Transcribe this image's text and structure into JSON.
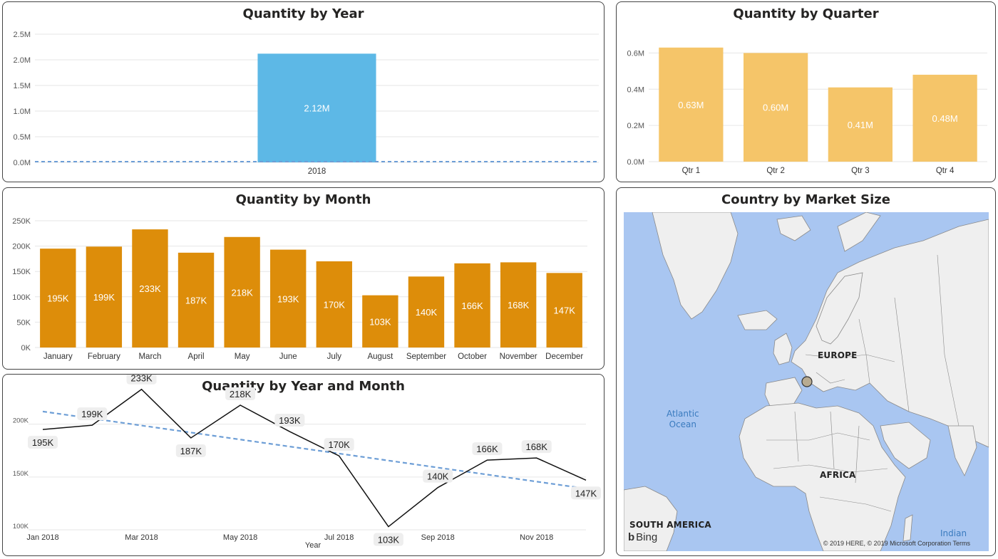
{
  "panels": {
    "year": {
      "title": "Quantity by Year"
    },
    "quarter": {
      "title": "Quantity by Quarter"
    },
    "month": {
      "title": "Quantity by Month"
    },
    "yearmonth": {
      "title": "Quantity by Year and Month"
    },
    "map": {
      "title": "Country by Market Size"
    }
  },
  "colors": {
    "year_bar": "#5db8e6",
    "quarter_bar": "#f5c569",
    "month_bar": "#dd8d0a",
    "line": "#111111",
    "trend": "#6d9ed6",
    "grid": "#e6e6e6",
    "ocean": "#a9c6f1",
    "land": "#efefef",
    "border": "#8a8a8a",
    "bubble": "#b8ab91"
  },
  "chart_data": [
    {
      "id": "year",
      "type": "bar",
      "title": "Quantity by Year",
      "categories": [
        "2018"
      ],
      "values": [
        2120000
      ],
      "data_labels": [
        "2.12M"
      ],
      "y_ticks": [
        "0.0M",
        "0.5M",
        "1.0M",
        "1.5M",
        "2.0M",
        "2.5M"
      ],
      "ylim": [
        0,
        2500000
      ],
      "trend_line": true,
      "grid": true
    },
    {
      "id": "quarter",
      "type": "bar",
      "title": "Quantity by Quarter",
      "categories": [
        "Qtr 1",
        "Qtr 2",
        "Qtr 3",
        "Qtr 4"
      ],
      "values": [
        630000,
        600000,
        410000,
        480000
      ],
      "data_labels": [
        "0.63M",
        "0.60M",
        "0.41M",
        "0.48M"
      ],
      "y_ticks": [
        "0.0M",
        "0.2M",
        "0.4M",
        "0.6M"
      ],
      "ylim": [
        0,
        700000
      ],
      "grid": true
    },
    {
      "id": "month",
      "type": "bar",
      "title": "Quantity by Month",
      "categories": [
        "January",
        "February",
        "March",
        "April",
        "May",
        "June",
        "July",
        "August",
        "September",
        "October",
        "November",
        "December"
      ],
      "values": [
        195000,
        199000,
        233000,
        187000,
        218000,
        193000,
        170000,
        103000,
        140000,
        166000,
        168000,
        147000
      ],
      "data_labels": [
        "195K",
        "199K",
        "233K",
        "187K",
        "218K",
        "193K",
        "170K",
        "103K",
        "140K",
        "166K",
        "168K",
        "147K"
      ],
      "y_ticks": [
        "0K",
        "50K",
        "100K",
        "150K",
        "200K",
        "250K"
      ],
      "ylim": [
        0,
        250000
      ],
      "grid": true
    },
    {
      "id": "yearmonth",
      "type": "line",
      "title": "Quantity by Year and Month",
      "xlabel": "Year",
      "x": [
        "2018-01",
        "2018-02",
        "2018-03",
        "2018-04",
        "2018-05",
        "2018-06",
        "2018-07",
        "2018-08",
        "2018-09",
        "2018-10",
        "2018-11",
        "2018-12"
      ],
      "x_ticks": [
        "Jan 2018",
        "Mar 2018",
        "May 2018",
        "Jul 2018",
        "Sep 2018",
        "Nov 2018"
      ],
      "values": [
        195000,
        199000,
        233000,
        187000,
        218000,
        193000,
        170000,
        103000,
        140000,
        166000,
        168000,
        147000
      ],
      "data_labels": [
        "195K",
        "199K",
        "233K",
        "187K",
        "218K",
        "193K",
        "170K",
        "103K",
        "140K",
        "166K",
        "168K",
        "147K"
      ],
      "y_ticks": [
        "100K",
        "150K",
        "200K"
      ],
      "ylim": [
        100000,
        220000
      ],
      "trend_line": {
        "start": 212000,
        "end": 139000
      },
      "grid": true
    }
  ],
  "map": {
    "labels": {
      "europe": "EUROPE",
      "africa": "AFRICA",
      "south_america": "SOUTH AMERICA",
      "atlantic": "Atlantic\nOcean",
      "indian": "Indian"
    },
    "bing": "Bing",
    "attribution": "© 2019 HERE, © 2019 Microsoft Corporation Terms"
  }
}
